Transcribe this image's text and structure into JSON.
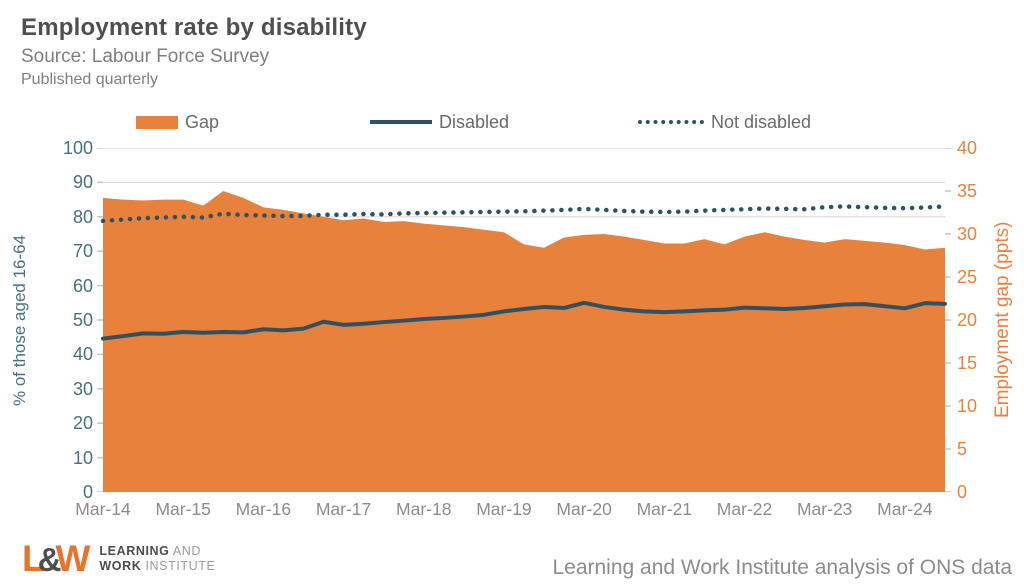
{
  "header": {
    "title": "Employment rate by disability",
    "subtitle": "Source: Labour Force Survey",
    "note": "Published quarterly"
  },
  "legend": {
    "gap": "Gap",
    "disabled": "Disabled",
    "not_disabled": "Not disabled"
  },
  "chart_data": {
    "type": "area",
    "title": "Employment rate by disability",
    "grid": "horizontal",
    "legend_position": "top",
    "x_axis": {
      "tick_labels": [
        "Mar-14",
        "Mar-15",
        "Mar-16",
        "Mar-17",
        "Mar-18",
        "Mar-19",
        "Mar-20",
        "Mar-21",
        "Mar-22",
        "Mar-23",
        "Mar-24"
      ],
      "tick_every_quarters": 4
    },
    "left_axis": {
      "label": "% of those aged 16-64",
      "min": 0,
      "max": 100,
      "tick_step": 10,
      "ticks": [
        0,
        10,
        20,
        30,
        40,
        50,
        60,
        70,
        80,
        90,
        100
      ],
      "color": "#4A7080"
    },
    "right_axis": {
      "label": "Employment gap (ppts)",
      "min": 0,
      "max": 40,
      "tick_step": 5,
      "ticks": [
        0,
        5,
        10,
        15,
        20,
        25,
        30,
        35,
        40
      ],
      "color": "#E8823E"
    },
    "quarters": [
      "Mar-14",
      "Jun-14",
      "Sep-14",
      "Dec-14",
      "Mar-15",
      "Jun-15",
      "Sep-15",
      "Dec-15",
      "Mar-16",
      "Jun-16",
      "Sep-16",
      "Dec-16",
      "Mar-17",
      "Jun-17",
      "Sep-17",
      "Dec-17",
      "Mar-18",
      "Jun-18",
      "Sep-18",
      "Dec-18",
      "Mar-19",
      "Jun-19",
      "Sep-19",
      "Dec-19",
      "Mar-20",
      "Jun-20",
      "Sep-20",
      "Dec-20",
      "Mar-21",
      "Jun-21",
      "Sep-21",
      "Dec-21",
      "Mar-22",
      "Jun-22",
      "Sep-22",
      "Dec-22",
      "Mar-23",
      "Jun-23",
      "Sep-23",
      "Dec-23",
      "Mar-24",
      "Jun-24",
      "Sep-24"
    ],
    "series": [
      {
        "name": "Gap",
        "axis": "right",
        "style": "area",
        "color": "#E8813C",
        "values": [
          34.2,
          34.0,
          33.9,
          34.0,
          34.0,
          33.3,
          35.0,
          34.2,
          33.1,
          32.8,
          32.4,
          32.0,
          31.6,
          31.8,
          31.4,
          31.5,
          31.2,
          31.0,
          30.8,
          30.5,
          30.2,
          28.8,
          28.4,
          29.6,
          29.9,
          30.0,
          29.7,
          29.3,
          28.9,
          28.9,
          29.4,
          28.8,
          29.7,
          30.2,
          29.7,
          29.3,
          29.0,
          29.4,
          29.2,
          29.0,
          28.7,
          28.2,
          28.4
        ]
      },
      {
        "name": "Disabled",
        "axis": "left",
        "style": "solid",
        "color": "#2E5263",
        "values": [
          44.6,
          45.3,
          46.1,
          46.0,
          46.5,
          46.3,
          46.5,
          46.4,
          47.3,
          47.0,
          47.5,
          49.5,
          48.6,
          48.9,
          49.4,
          49.8,
          50.3,
          50.6,
          51.0,
          51.5,
          52.5,
          53.2,
          53.8,
          53.5,
          55.0,
          53.8,
          53.0,
          52.5,
          52.3,
          52.5,
          52.8,
          53.0,
          53.6,
          53.4,
          53.2,
          53.5,
          54.0,
          54.5,
          54.6,
          54.0,
          53.4,
          54.9,
          54.7
        ]
      },
      {
        "name": "Not disabled",
        "axis": "left",
        "style": "dotted",
        "color": "#2E5263",
        "values": [
          78.8,
          79.2,
          79.6,
          79.8,
          80.0,
          79.8,
          80.9,
          80.5,
          80.4,
          80.2,
          80.3,
          80.6,
          80.6,
          80.8,
          80.7,
          81.0,
          81.1,
          81.2,
          81.3,
          81.4,
          81.5,
          81.6,
          81.8,
          82.0,
          82.3,
          82.0,
          81.7,
          81.5,
          81.4,
          81.5,
          81.8,
          82.0,
          82.2,
          82.4,
          82.3,
          82.2,
          82.8,
          83.0,
          82.8,
          82.6,
          82.5,
          82.7,
          83.0
        ]
      }
    ]
  },
  "footer": {
    "logo": {
      "l": "L",
      "amp": "&",
      "w": "W",
      "line1_bold": "LEARNING",
      "line1_rest": " AND",
      "line2_bold": "WORK",
      "line2_rest": " INSTITUTE"
    },
    "caption": "Learning and Work Institute analysis of ONS data"
  },
  "colors": {
    "area_orange": "#E8813C",
    "line_dark_teal": "#2E5263",
    "grid": "#D9D9D9",
    "title_text": "#4F4F4F",
    "muted_text": "#7F7F7F",
    "x_label_text": "#8C8C8C",
    "left_axis_text": "#4A7080",
    "right_axis_text": "#E8823E",
    "logo_orange": "#E8742B"
  }
}
